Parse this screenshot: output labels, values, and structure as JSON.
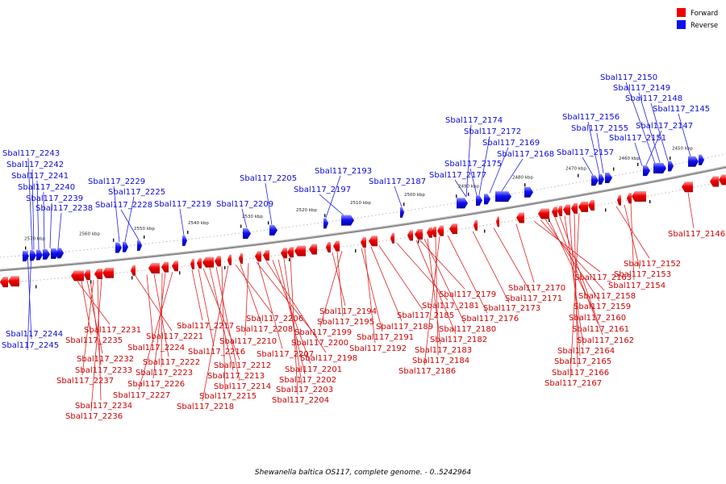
{
  "caption": "Shewanella baltica OS117, complete genome. - 0..5242964",
  "legend": [
    {
      "label": "Forward",
      "color": "#ee0000"
    },
    {
      "label": "Reverse",
      "color": "#1010ee"
    }
  ],
  "colors": {
    "forward": "#ee0000",
    "forward_label": "#cc0000",
    "reverse": "#1010ee",
    "reverse_label": "#0a0ad6"
  },
  "ticks": [
    "2570 kbp",
    "2560 kbp",
    "2550 kbp",
    "2540 kbp",
    "2530 kbp",
    "2520 kbp",
    "2510 kbp",
    "2500 kbp",
    "2490 kbp",
    "2480 kbp",
    "2470 kbp",
    "2460 kbp",
    "2450 kbp"
  ],
  "reverse_labels": [
    "Sbal117_2243",
    "Sbal117_2242",
    "Sbal117_2241",
    "Sbal117_2240",
    "Sbal117_2239",
    "Sbal117_2238",
    "Sbal117_2229",
    "Sbal117_2225",
    "Sbal117_2228",
    "Sbal117_2219",
    "Sbal117_2205",
    "Sbal117_2209",
    "Sbal117_2193",
    "Sbal117_2197",
    "Sbal117_2187",
    "Sbal117_2174",
    "Sbal117_2172",
    "Sbal117_2169",
    "Sbal117_2168",
    "Sbal117_2175",
    "Sbal117_2177",
    "Sbal117_2150",
    "Sbal117_2149",
    "Sbal117_2148",
    "Sbal117_2145",
    "Sbal117_2156",
    "Sbal117_2155",
    "Sbal117_2147",
    "Sbal117_2151",
    "Sbal117_2157",
    "Sbal117_2244",
    "Sbal117_2245"
  ],
  "forward_labels": [
    "Sbal117_2231",
    "Sbal117_2235",
    "Sbal117_2232",
    "Sbal117_2233",
    "Sbal117_2237",
    "Sbal117_2234",
    "Sbal117_2236",
    "Sbal117_2221",
    "Sbal117_2224",
    "Sbal117_2222",
    "Sbal117_2223",
    "Sbal117_2226",
    "Sbal117_2227",
    "Sbal117_2217",
    "Sbal117_2216",
    "Sbal117_2212",
    "Sbal117_2213",
    "Sbal117_2214",
    "Sbal117_2215",
    "Sbal117_2218",
    "Sbal117_2206",
    "Sbal117_2208",
    "Sbal117_2210",
    "Sbal117_2207",
    "Sbal117_2194",
    "Sbal117_2195",
    "Sbal117_2199",
    "Sbal117_2200",
    "Sbal117_2198",
    "Sbal117_2201",
    "Sbal117_2202",
    "Sbal117_2203",
    "Sbal117_2204",
    "Sbal117_2191",
    "Sbal117_2192",
    "Sbal117_2189",
    "Sbal117_2185",
    "Sbal117_2181",
    "Sbal117_2179",
    "Sbal117_2182",
    "Sbal117_2180",
    "Sbal117_2183",
    "Sbal117_2184",
    "Sbal117_2186",
    "Sbal117_2176",
    "Sbal117_2173",
    "Sbal117_2171",
    "Sbal117_2170",
    "Sbal117_2163",
    "Sbal117_2158",
    "Sbal117_2159",
    "Sbal117_2160",
    "Sbal117_2161",
    "Sbal117_2162",
    "Sbal117_2164",
    "Sbal117_2165",
    "Sbal117_2166",
    "Sbal117_2167",
    "Sbal117_2152",
    "Sbal117_2153",
    "Sbal117_2154",
    "Sbal117_2146"
  ]
}
